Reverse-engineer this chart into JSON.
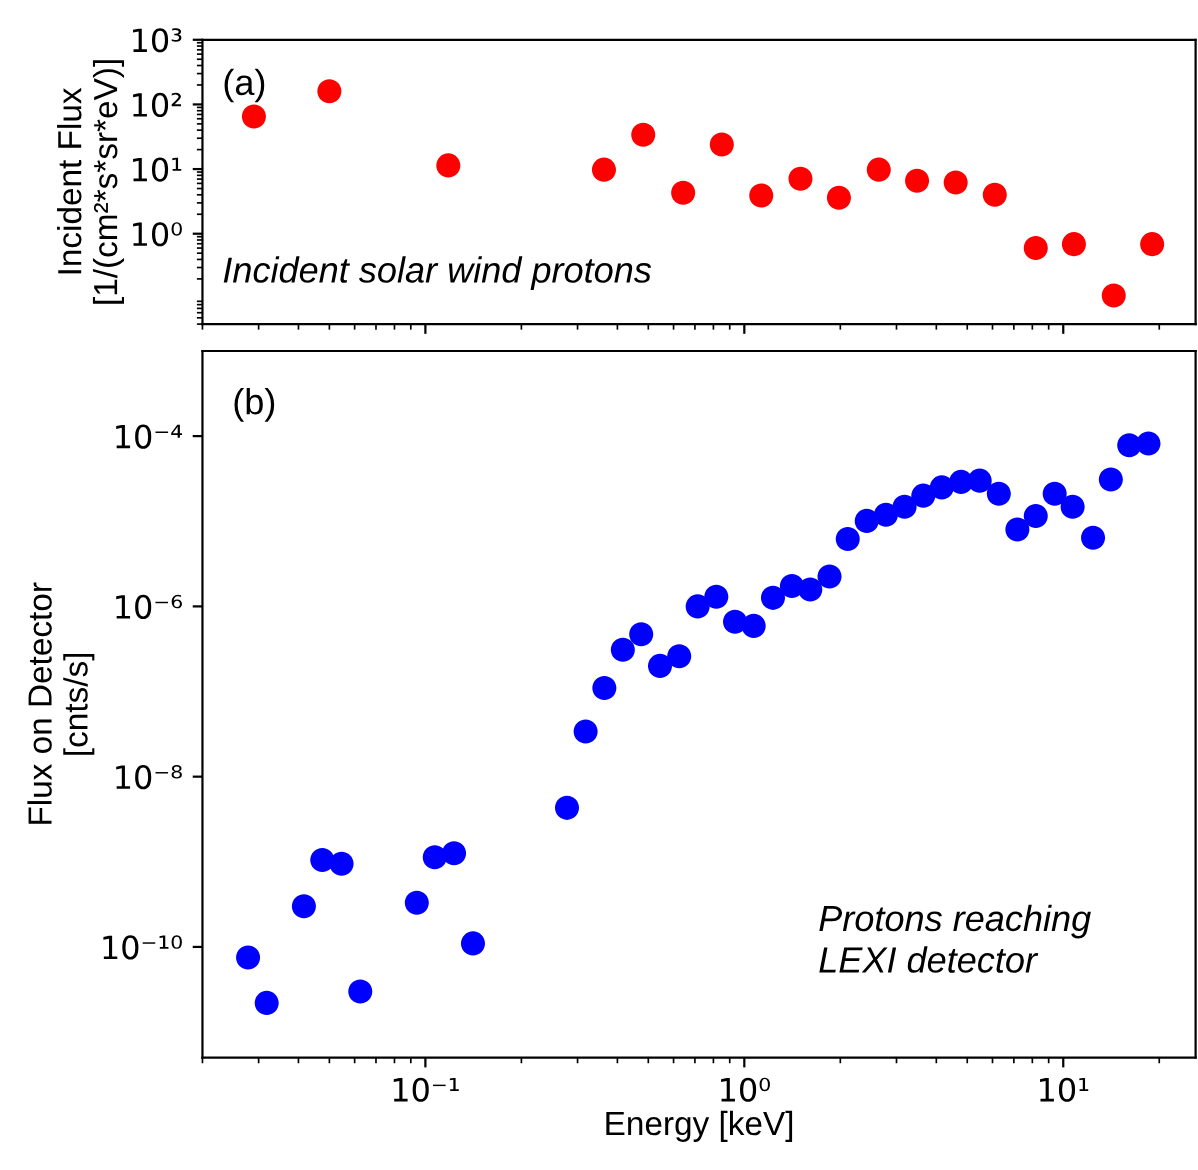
{
  "chart_data": [
    {
      "type": "scatter",
      "ylabel": "Incident Flux\n[1/(cm²*s*sr*eV)]",
      "log": "xy",
      "marker": "circle",
      "grid": false,
      "legend": false,
      "tick_labels": "y",
      "annotations": [
        "(a)",
        "Incident solar wind protons"
      ],
      "xlim": [
        0.02,
        26
      ],
      "xticks": [
        {
          "value": 0.1,
          "label": null
        },
        {
          "value": 1,
          "label": null
        },
        {
          "value": 10,
          "label": null
        }
      ],
      "ylim": [
        0.04,
        1000
      ],
      "yticks": [
        {
          "value": 1,
          "label": "10⁰"
        },
        {
          "value": 10,
          "label": "10¹"
        },
        {
          "value": 100,
          "label": "10²"
        },
        {
          "value": 1000,
          "label": "10³"
        }
      ],
      "series": [
        {
          "color": "#ff0000",
          "x": [
            0.029,
            0.05,
            0.118,
            0.363,
            0.482,
            0.643,
            0.85,
            1.13,
            1.5,
            1.98,
            2.64,
            3.48,
            4.6,
            6.1,
            8.2,
            10.8,
            14.4,
            19.0
          ],
          "values": [
            65,
            160,
            11.4,
            9.8,
            34,
            4.3,
            24,
            3.9,
            7.1,
            3.6,
            9.8,
            6.6,
            6.2,
            4.0,
            0.6,
            0.69,
            0.111,
            0.69
          ]
        }
      ]
    },
    {
      "type": "scatter",
      "xlabel": "Energy [keV]",
      "ylabel": "Flux on Detector\n[cnts/s]",
      "log": "xy",
      "marker": "circle",
      "grid": false,
      "legend": false,
      "annotations": [
        "(b)",
        "Protons reaching\nLEXI detector"
      ],
      "xlim": [
        0.02,
        26
      ],
      "xticks": [
        {
          "value": 0.1,
          "label": "10⁻¹"
        },
        {
          "value": 1,
          "label": "10⁰"
        },
        {
          "value": 10,
          "label": "10¹"
        }
      ],
      "ylim": [
        5e-12,
        0.001
      ],
      "yticks": [
        {
          "value": 1e-10,
          "label": "10⁻¹⁰"
        },
        {
          "value": 1e-08,
          "label": "10⁻⁸"
        },
        {
          "value": 1e-06,
          "label": "10⁻⁶"
        },
        {
          "value": 0.0001,
          "label": "10⁻⁴"
        }
      ],
      "series": [
        {
          "color": "#0000ff",
          "x": [
            0.0278,
            0.0318,
            0.0416,
            0.0475,
            0.0546,
            0.0625,
            0.094,
            0.107,
            0.123,
            0.141,
            0.278,
            0.318,
            0.364,
            0.416,
            0.475,
            0.544,
            0.625,
            0.714,
            0.817,
            0.935,
            1.07,
            1.23,
            1.41,
            1.61,
            1.85,
            2.11,
            2.42,
            2.78,
            3.18,
            3.64,
            4.16,
            4.78,
            5.47,
            6.28,
            7.18,
            8.2,
            9.4,
            10.7,
            12.4,
            14.1,
            16.1,
            18.5
          ],
          "values": [
            7.5e-11,
            2.2e-11,
            3e-10,
            1.05e-09,
            9.5e-10,
            3e-11,
            3.3e-10,
            1.13e-09,
            1.26e-09,
            1.1e-10,
            4.3e-09,
            3.4e-08,
            1.1e-07,
            3.1e-07,
            4.7e-07,
            2e-07,
            2.6e-07,
            1e-06,
            1.3e-06,
            6.6e-07,
            5.9e-07,
            1.26e-06,
            1.74e-06,
            1.58e-06,
            2.24e-06,
            6.2e-06,
            1.01e-05,
            1.19e-05,
            1.48e-05,
            2e-05,
            2.5e-05,
            2.9e-05,
            3e-05,
            2.1e-05,
            8e-06,
            1.15e-05,
            2.1e-05,
            1.48e-05,
            6.4e-06,
            3.1e-05,
            7.8e-05,
            8.2e-05
          ]
        }
      ]
    }
  ]
}
